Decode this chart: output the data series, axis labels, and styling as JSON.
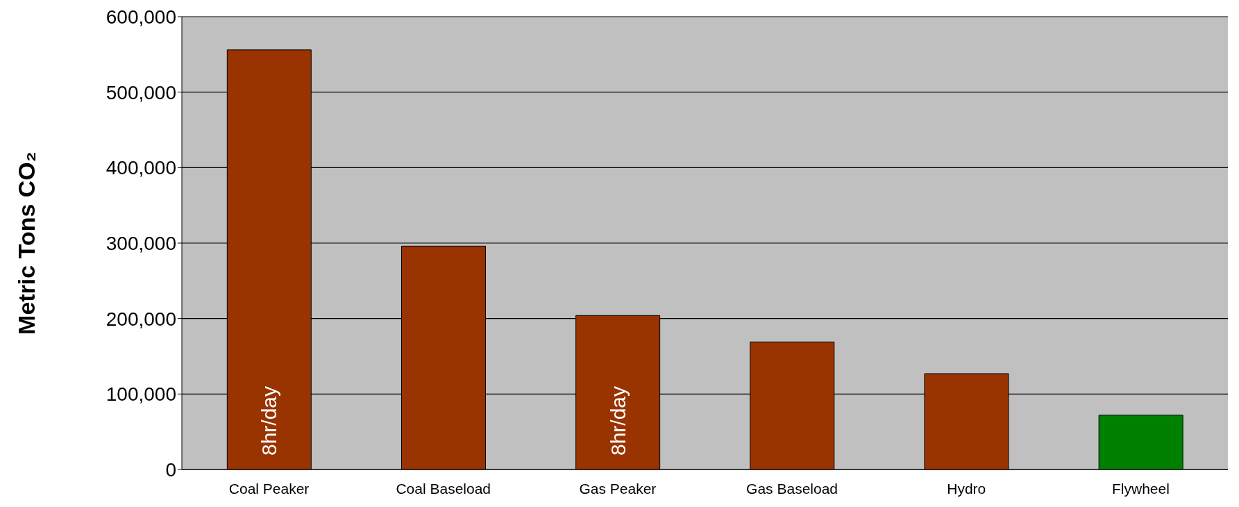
{
  "chart_data": {
    "type": "bar",
    "ylabel": "Metric Tons CO₂",
    "categories": [
      "Coal Peaker",
      "Coal Baseload",
      "Gas Peaker",
      "Gas Baseload",
      "Hydro",
      "Flywheel"
    ],
    "values": [
      556000,
      296000,
      204000,
      169000,
      127000,
      72000
    ],
    "colors": [
      "#993300",
      "#993300",
      "#993300",
      "#993300",
      "#993300",
      "#008000"
    ],
    "ylim": [
      0,
      600000
    ],
    "yticks": [
      0,
      {
        "value": 100000,
        "label": "100,000"
      },
      {
        "value": 200000,
        "label": "200,000"
      },
      {
        "value": 300000,
        "label": "300,000"
      },
      {
        "value": 400000,
        "label": "400,000"
      },
      {
        "value": 500000,
        "label": "500,000"
      },
      {
        "value": 600000,
        "label": "600,000"
      }
    ],
    "grid": "y",
    "annotations": [
      "8hr/day",
      "8hr/day"
    ]
  }
}
